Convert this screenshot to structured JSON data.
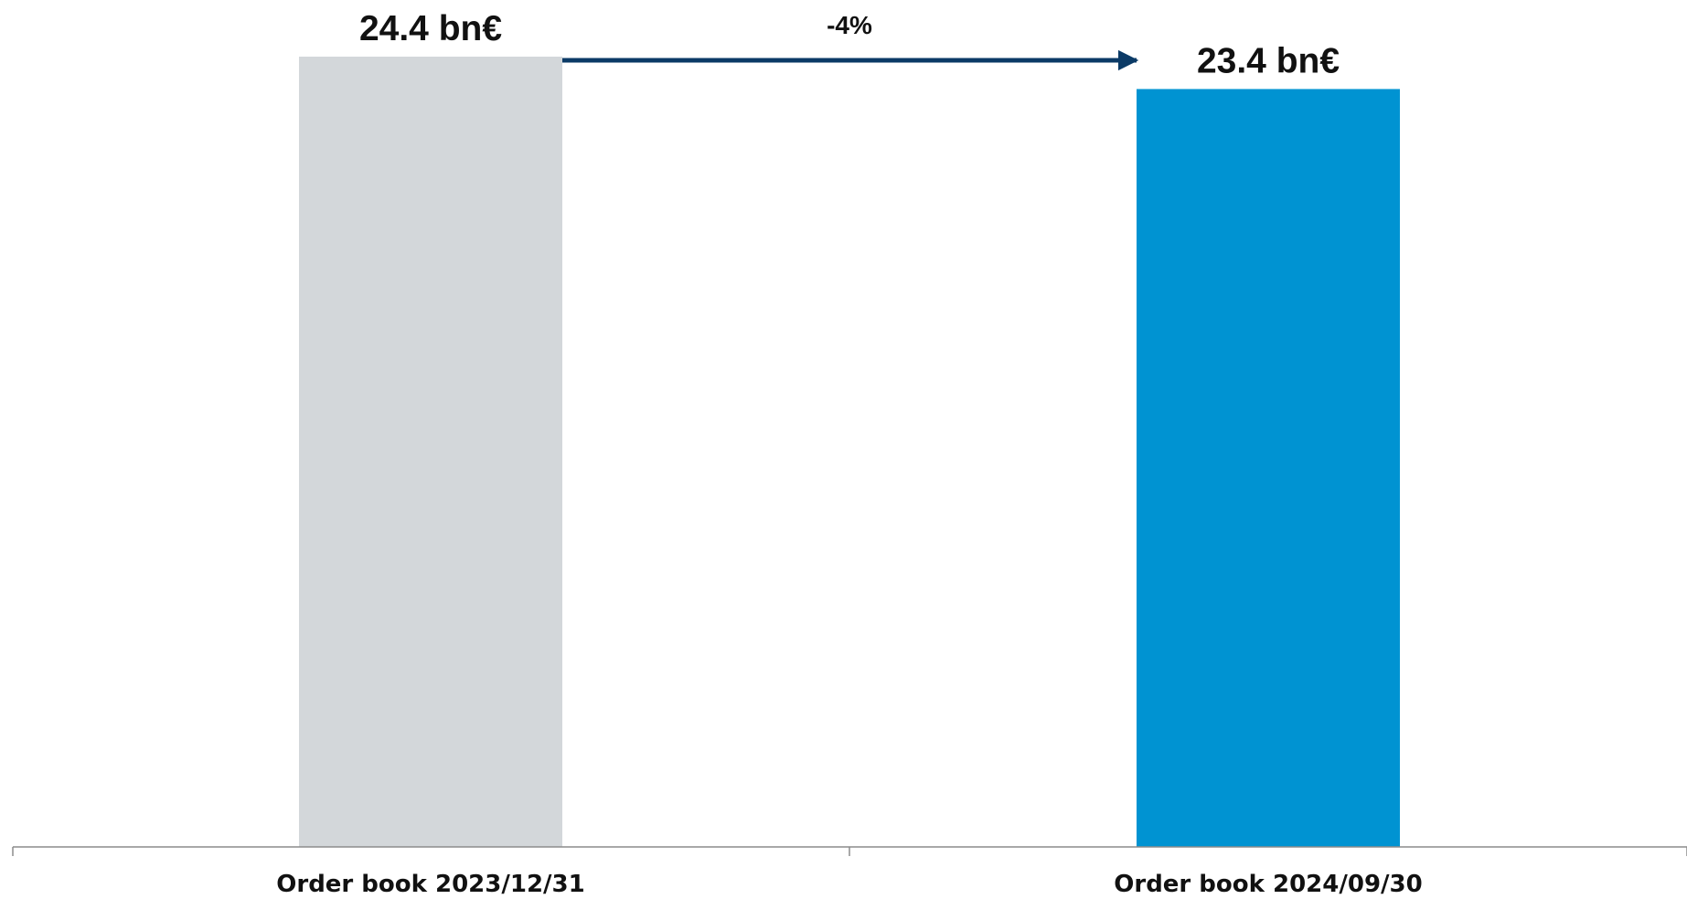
{
  "chart_data": {
    "type": "bar",
    "categories": [
      "Order book 2023/12/31",
      "Order book 2024/09/30"
    ],
    "values": [
      24.4,
      23.4
    ],
    "data_labels": [
      "24.4 bn€",
      "23.4 bn€"
    ],
    "change_label": "-4%",
    "unit": "bn€",
    "ylim": [
      0,
      24.4
    ],
    "grid": false,
    "legend": "none",
    "colors": {
      "bar_previous": "#d3d7da",
      "bar_current": "#0093d2",
      "arrow": "#0b3a66",
      "axis": "#8c8c8c"
    }
  }
}
